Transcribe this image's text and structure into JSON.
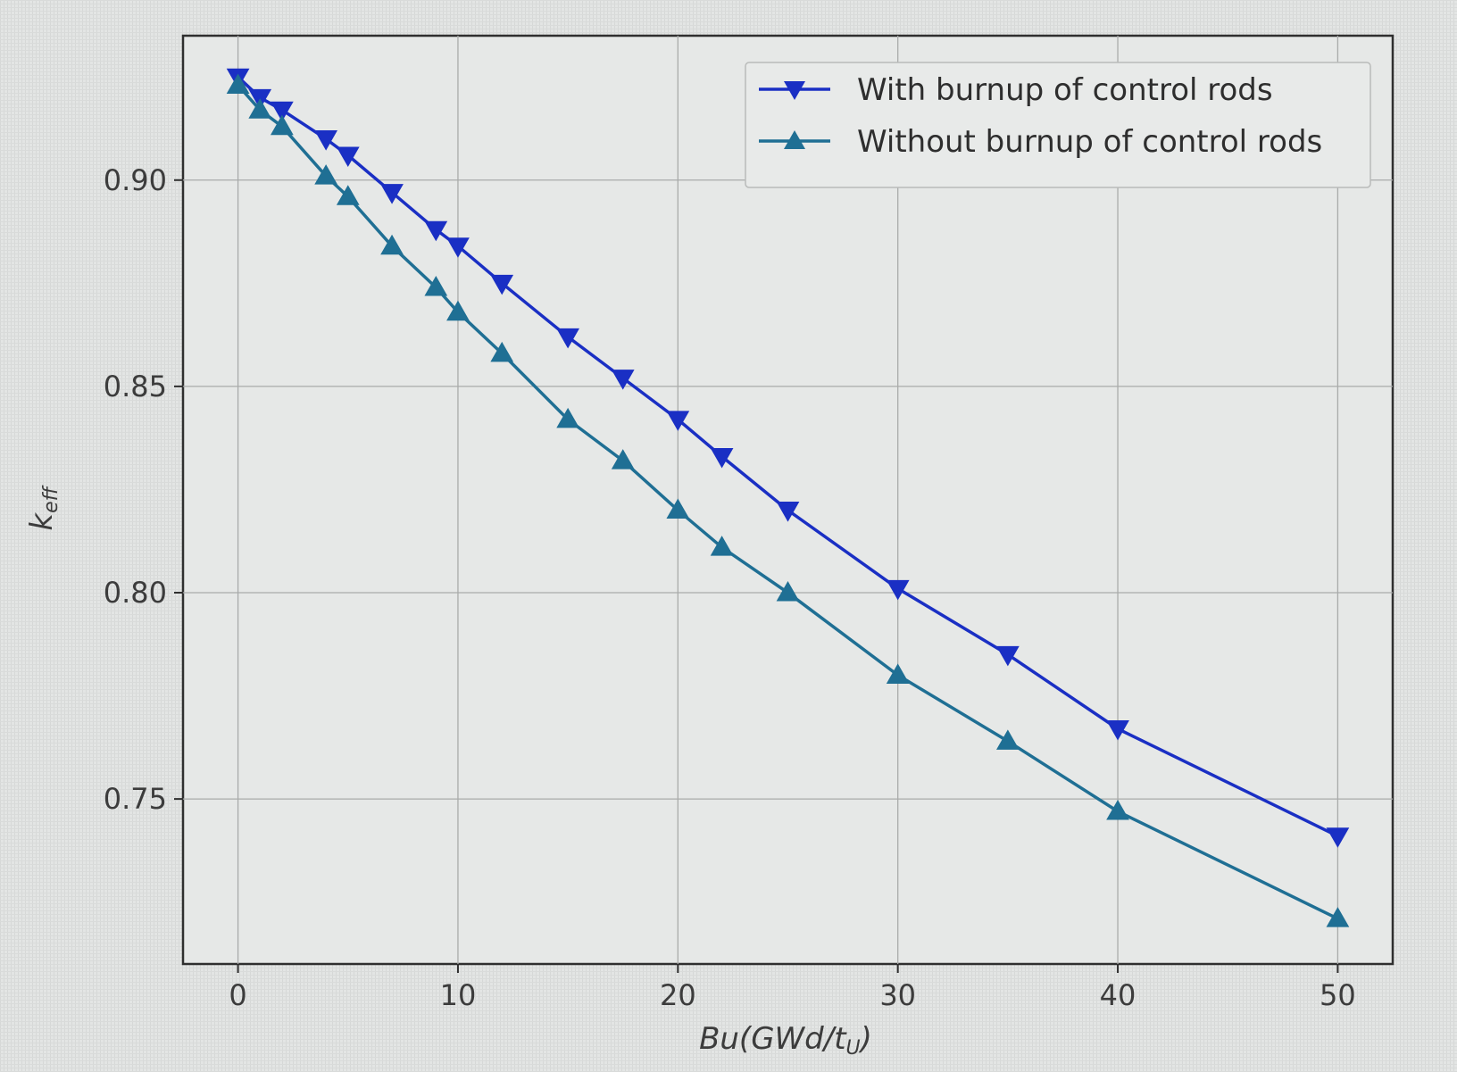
{
  "chart_data": {
    "type": "line",
    "xlabel": "Bu(GWd/t",
    "xlabel_sub": "U",
    "xlabel_close": ")",
    "ylabel": "k",
    "ylabel_sub": "eff",
    "xlim": [
      -2.5,
      52.5
    ],
    "ylim": [
      0.71,
      0.935
    ],
    "xticks": [
      0,
      10,
      20,
      30,
      40,
      50
    ],
    "yticks": [
      0.75,
      0.8,
      0.85,
      0.9
    ],
    "xtick_labels": [
      "0",
      "10",
      "20",
      "30",
      "40",
      "50"
    ],
    "ytick_labels": [
      "0.75",
      "0.80",
      "0.85",
      "0.90"
    ],
    "grid": true,
    "legend_position": "top-right",
    "series": [
      {
        "name": "With burnup of control rods",
        "marker": "triangle-down",
        "color": "#1a2fc4",
        "x": [
          0,
          1,
          2,
          4,
          5,
          7,
          9,
          10,
          12,
          15,
          17.5,
          20,
          22,
          25,
          30,
          35,
          40,
          50
        ],
        "y": [
          0.925,
          0.92,
          0.917,
          0.91,
          0.906,
          0.897,
          0.888,
          0.884,
          0.875,
          0.862,
          0.852,
          0.842,
          0.833,
          0.82,
          0.801,
          0.785,
          0.767,
          0.741
        ]
      },
      {
        "name": "Without burnup of control rods",
        "marker": "triangle-up",
        "color": "#1f6f94",
        "x": [
          0,
          1,
          2,
          4,
          5,
          7,
          9,
          10,
          12,
          15,
          17.5,
          20,
          22,
          25,
          30,
          35,
          40,
          50
        ],
        "y": [
          0.923,
          0.917,
          0.913,
          0.901,
          0.896,
          0.884,
          0.874,
          0.868,
          0.858,
          0.842,
          0.832,
          0.82,
          0.811,
          0.8,
          0.78,
          0.764,
          0.747,
          0.721
        ]
      }
    ]
  }
}
